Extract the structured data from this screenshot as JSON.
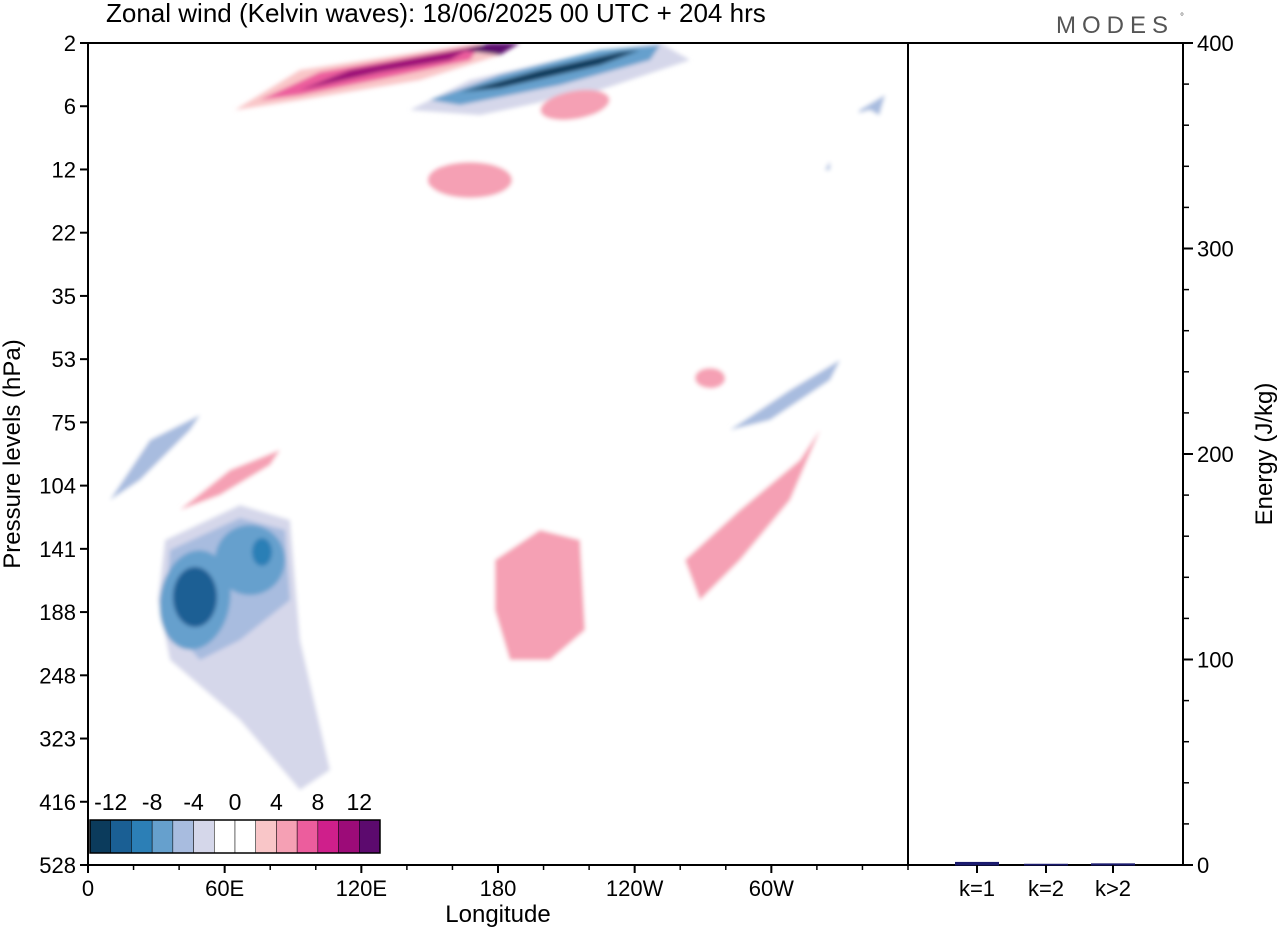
{
  "title": "Zonal wind (Kelvin waves):  18/06/2025  00 UTC  + 204 hrs",
  "brand": "MODES",
  "brand_mark": "°",
  "chart_data": [
    {
      "type": "heatmap",
      "variable": "Zonal wind (Kelvin waves)",
      "xlabel": "Longitude",
      "ylabel": "Pressure levels (hPa)",
      "x_ticks": [
        "0",
        "60E",
        "120E",
        "180",
        "120W",
        "60W"
      ],
      "x_tick_degrees": [
        0,
        60,
        120,
        180,
        240,
        300
      ],
      "xlim": [
        0,
        360
      ],
      "y_levels": [
        "2",
        "6",
        "12",
        "22",
        "35",
        "53",
        "75",
        "104",
        "141",
        "188",
        "248",
        "323",
        "416",
        "528"
      ],
      "contour_levels": [
        -14,
        -12,
        -10,
        -8,
        -6,
        -4,
        -2,
        2,
        4,
        6,
        8,
        10,
        12,
        14
      ],
      "colorbar_labels": [
        "-12",
        "-8",
        "-4",
        "0",
        "4",
        "8",
        "12"
      ],
      "colorbar_colors": [
        "#0b3b5c",
        "#1a5f94",
        "#2c7fb6",
        "#66a0cd",
        "#a8bcdf",
        "#d5d7ea",
        "#ffffff",
        "#ffffff",
        "#f9c6c8",
        "#f5a0b4",
        "#ec5d9d",
        "#cf1f8b",
        "#9c0b78",
        "#5c0a6e"
      ],
      "features": [
        {
          "kind": "negative",
          "value": -12,
          "lon": 42,
          "level": "188"
        },
        {
          "kind": "negative",
          "value": -10,
          "lon": 78,
          "level": "141"
        },
        {
          "kind": "negative",
          "value": -6,
          "lon": 20,
          "level": "104"
        },
        {
          "kind": "negative",
          "value": -6,
          "lon": 308,
          "level": "75"
        },
        {
          "kind": "negative",
          "value": -6,
          "lon": 345,
          "level": "6"
        },
        {
          "kind": "negative",
          "value": -14,
          "lon": 190,
          "level": "2"
        },
        {
          "kind": "positive",
          "value": 12,
          "lon": 120,
          "level": "2"
        },
        {
          "kind": "positive",
          "value": 14,
          "lon": 170,
          "level": "2"
        },
        {
          "kind": "positive",
          "value": 6,
          "lon": 185,
          "level": "12"
        },
        {
          "kind": "positive",
          "value": 6,
          "lon": 210,
          "level": "6"
        },
        {
          "kind": "positive",
          "value": 6,
          "lon": 65,
          "level": "104"
        },
        {
          "kind": "positive",
          "value": 6,
          "lon": 200,
          "level": "188"
        },
        {
          "kind": "positive",
          "value": 6,
          "lon": 290,
          "level": "141"
        },
        {
          "kind": "positive",
          "value": 4,
          "lon": 275,
          "level": "53"
        }
      ]
    },
    {
      "type": "bar",
      "ylabel": "Energy (J/kg)",
      "categories": [
        "k=1",
        "k=2",
        "k>2"
      ],
      "values": [
        1.5,
        0.6,
        0.8
      ],
      "ylim": [
        0,
        400
      ],
      "y_ticks": [
        "0",
        "100",
        "200",
        "300",
        "400"
      ],
      "bar_color": "#1a1a6e"
    }
  ]
}
